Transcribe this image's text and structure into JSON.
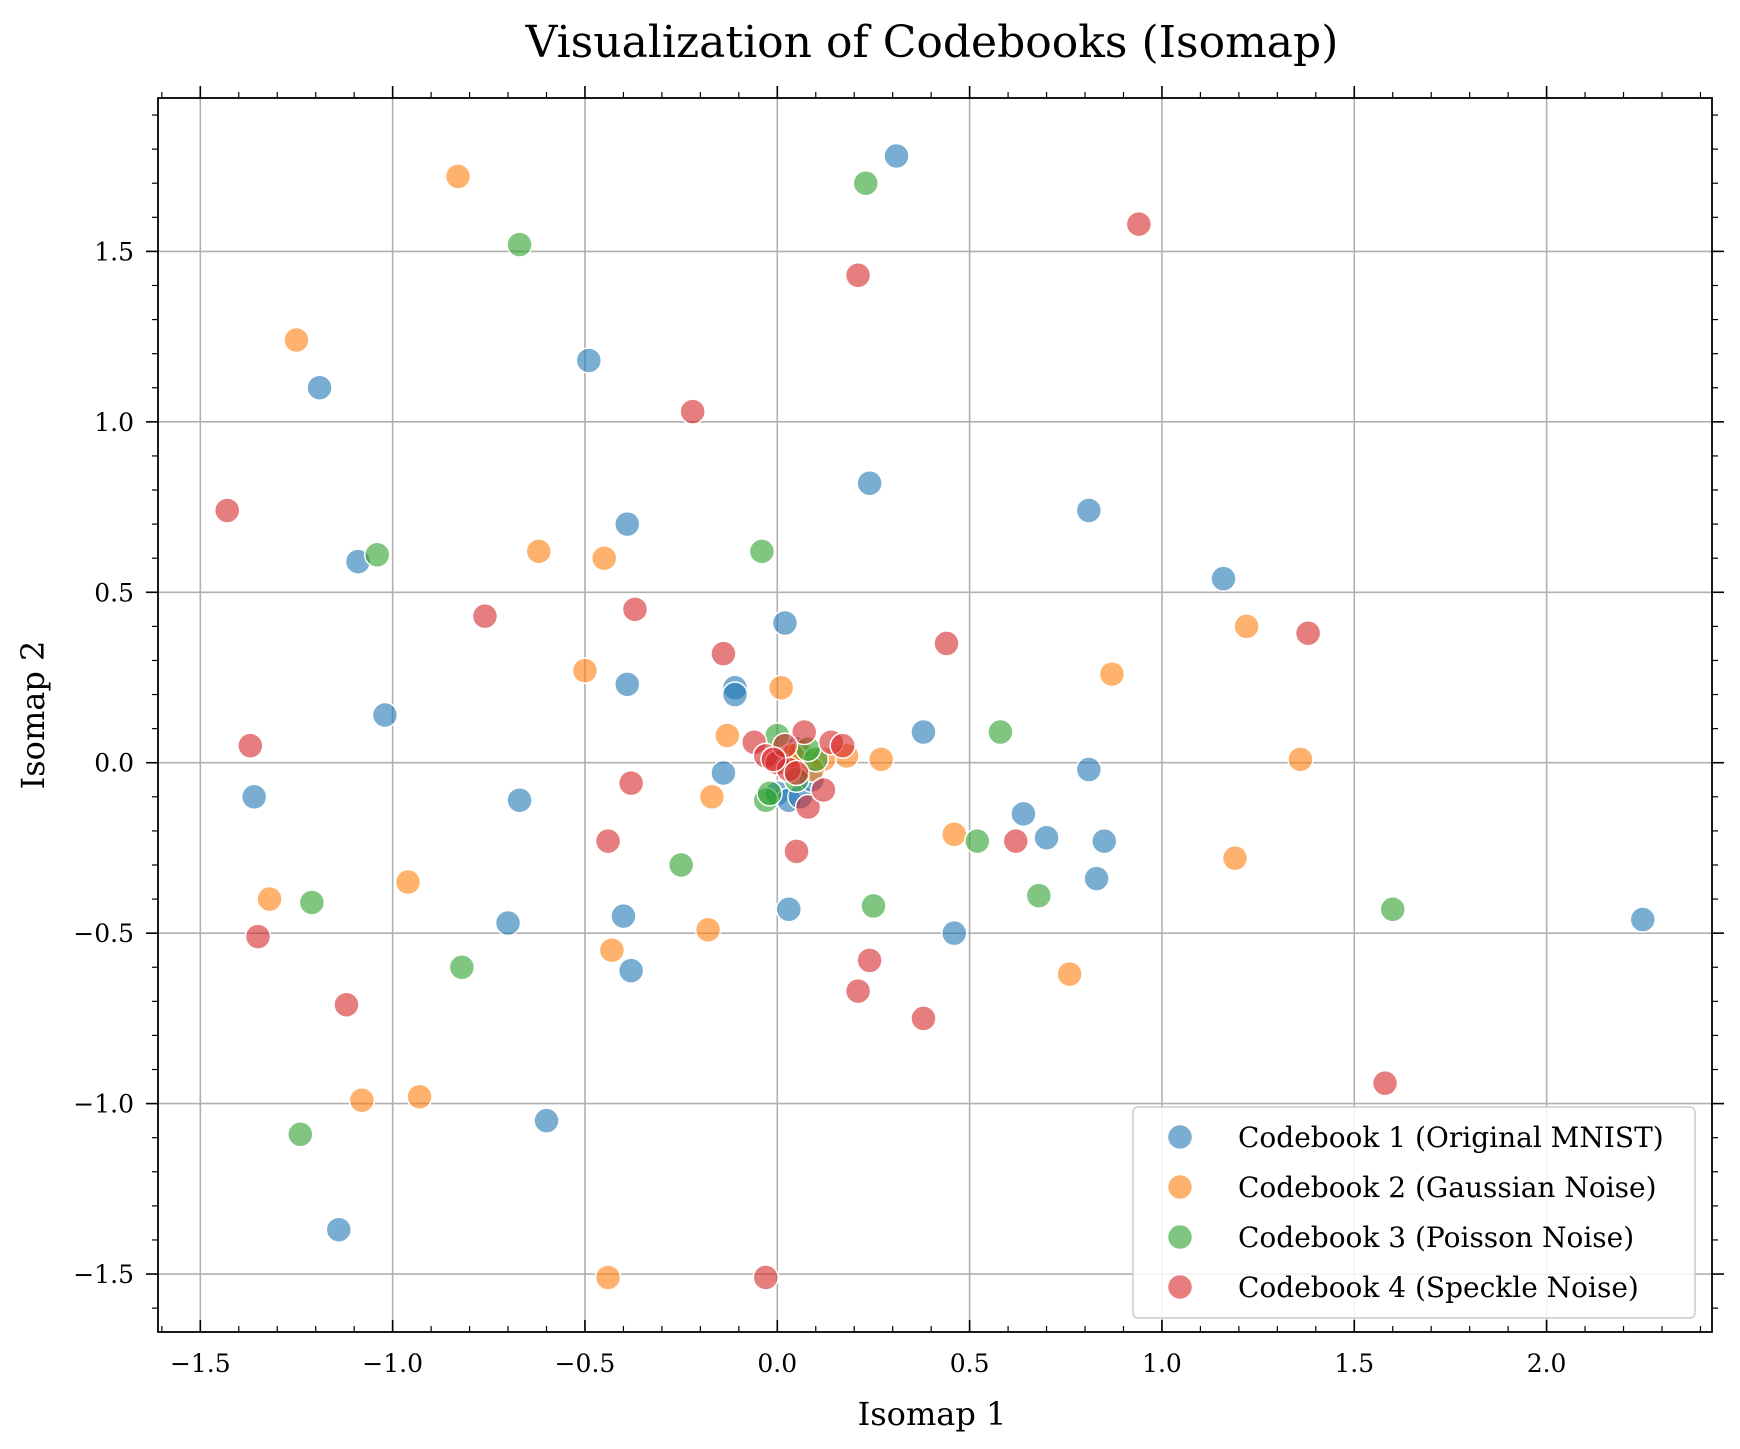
{
  "chart_data": {
    "type": "scatter",
    "title": "Visualization of Codebooks (Isomap)",
    "xlabel": "Isomap 1",
    "ylabel": "Isomap 2",
    "xlim": [
      -1.61,
      2.43
    ],
    "ylim": [
      -1.67,
      1.95
    ],
    "xticks": [
      -1.5,
      -1.0,
      -0.5,
      0.0,
      0.5,
      1.0,
      1.5,
      2.0
    ],
    "yticks": [
      -1.5,
      -1.0,
      -0.5,
      0.0,
      0.5,
      1.0,
      1.5
    ],
    "xtick_labels": [
      "−1.5",
      "−1.0",
      "−0.5",
      "0.0",
      "0.5",
      "1.0",
      "1.5",
      "2.0"
    ],
    "ytick_labels": [
      "−1.5",
      "−1.0",
      "−0.5",
      "0.0",
      "0.5",
      "1.0",
      "1.5"
    ],
    "grid": true,
    "legend_position": "bottom-right",
    "series": [
      {
        "name": "Codebook 1 (Original MNIST)",
        "color": "#1f77b4",
        "points": [
          [
            0.31,
            1.78
          ],
          [
            -0.49,
            1.18
          ],
          [
            -1.19,
            1.1
          ],
          [
            0.24,
            0.82
          ],
          [
            0.81,
            0.74
          ],
          [
            -0.39,
            0.7
          ],
          [
            -1.09,
            0.59
          ],
          [
            1.16,
            0.54
          ],
          [
            0.02,
            0.41
          ],
          [
            -0.39,
            0.23
          ],
          [
            -0.11,
            0.22
          ],
          [
            -0.11,
            0.2
          ],
          [
            -1.02,
            0.14
          ],
          [
            0.38,
            0.09
          ],
          [
            0.81,
            -0.02
          ],
          [
            -0.14,
            -0.03
          ],
          [
            -1.36,
            -0.1
          ],
          [
            -0.67,
            -0.11
          ],
          [
            0.64,
            -0.15
          ],
          [
            0.7,
            -0.22
          ],
          [
            0.85,
            -0.23
          ],
          [
            0.83,
            -0.34
          ],
          [
            -0.4,
            -0.45
          ],
          [
            0.03,
            -0.43
          ],
          [
            -0.7,
            -0.47
          ],
          [
            0.46,
            -0.5
          ],
          [
            -0.38,
            -0.61
          ],
          [
            -0.6,
            -1.05
          ],
          [
            -1.14,
            -1.37
          ],
          [
            2.25,
            -0.46
          ],
          [
            0.0,
            -0.09
          ],
          [
            0.03,
            -0.11
          ],
          [
            0.06,
            -0.1
          ],
          [
            0.09,
            -0.05
          ],
          [
            0.05,
            0.04
          ]
        ]
      },
      {
        "name": "Codebook 2 (Gaussian Noise)",
        "color": "#ff7f0e",
        "points": [
          [
            -0.83,
            1.72
          ],
          [
            -1.25,
            1.24
          ],
          [
            -0.62,
            0.62
          ],
          [
            -0.45,
            0.6
          ],
          [
            1.22,
            0.4
          ],
          [
            -0.5,
            0.27
          ],
          [
            0.87,
            0.26
          ],
          [
            0.01,
            0.22
          ],
          [
            -0.13,
            0.08
          ],
          [
            1.36,
            0.01
          ],
          [
            0.27,
            0.01
          ],
          [
            0.18,
            0.02
          ],
          [
            -0.17,
            -0.1
          ],
          [
            0.46,
            -0.21
          ],
          [
            1.19,
            -0.28
          ],
          [
            -0.96,
            -0.35
          ],
          [
            -1.32,
            -0.4
          ],
          [
            -0.18,
            -0.49
          ],
          [
            -0.43,
            -0.55
          ],
          [
            0.76,
            -0.62
          ],
          [
            -1.08,
            -0.99
          ],
          [
            -0.93,
            -0.98
          ],
          [
            -0.44,
            -1.51
          ],
          [
            0.06,
            0.03
          ],
          [
            0.12,
            0.01
          ],
          [
            0.09,
            -0.02
          ],
          [
            0.04,
            0.02
          ]
        ]
      },
      {
        "name": "Codebook 3 (Poisson Noise)",
        "color": "#2ca02c",
        "points": [
          [
            0.23,
            1.7
          ],
          [
            -0.67,
            1.52
          ],
          [
            -0.04,
            0.62
          ],
          [
            -1.04,
            0.61
          ],
          [
            0.58,
            0.09
          ],
          [
            0.52,
            -0.23
          ],
          [
            -0.25,
            -0.3
          ],
          [
            0.68,
            -0.39
          ],
          [
            -1.21,
            -0.41
          ],
          [
            1.6,
            -0.43
          ],
          [
            0.25,
            -0.42
          ],
          [
            -0.82,
            -0.6
          ],
          [
            -1.24,
            -1.09
          ],
          [
            -0.03,
            -0.11
          ],
          [
            -0.02,
            -0.09
          ],
          [
            0.0,
            0.08
          ],
          [
            0.05,
            -0.05
          ],
          [
            0.1,
            0.01
          ],
          [
            0.08,
            0.04
          ]
        ]
      },
      {
        "name": "Codebook 4 (Speckle Noise)",
        "color": "#d62728",
        "points": [
          [
            0.94,
            1.58
          ],
          [
            0.21,
            1.43
          ],
          [
            -0.22,
            1.03
          ],
          [
            -1.43,
            0.74
          ],
          [
            -0.37,
            0.45
          ],
          [
            -0.76,
            0.43
          ],
          [
            1.38,
            0.38
          ],
          [
            0.44,
            0.35
          ],
          [
            -0.14,
            0.32
          ],
          [
            -1.37,
            0.05
          ],
          [
            -0.38,
            -0.06
          ],
          [
            0.62,
            -0.23
          ],
          [
            -0.44,
            -0.23
          ],
          [
            0.05,
            -0.26
          ],
          [
            -1.35,
            -0.51
          ],
          [
            0.24,
            -0.58
          ],
          [
            0.21,
            -0.67
          ],
          [
            -1.12,
            -0.71
          ],
          [
            0.38,
            -0.75
          ],
          [
            1.58,
            -0.94
          ],
          [
            -0.03,
            -1.51
          ],
          [
            0.07,
            0.09
          ],
          [
            0.14,
            0.06
          ],
          [
            0.17,
            0.05
          ],
          [
            -0.06,
            0.06
          ],
          [
            -0.03,
            0.02
          ],
          [
            0.0,
            0.0
          ],
          [
            0.03,
            -0.02
          ],
          [
            0.05,
            -0.03
          ],
          [
            0.08,
            -0.13
          ],
          [
            0.12,
            -0.08
          ],
          [
            0.02,
            0.05
          ],
          [
            -0.01,
            0.01
          ]
        ]
      }
    ]
  }
}
